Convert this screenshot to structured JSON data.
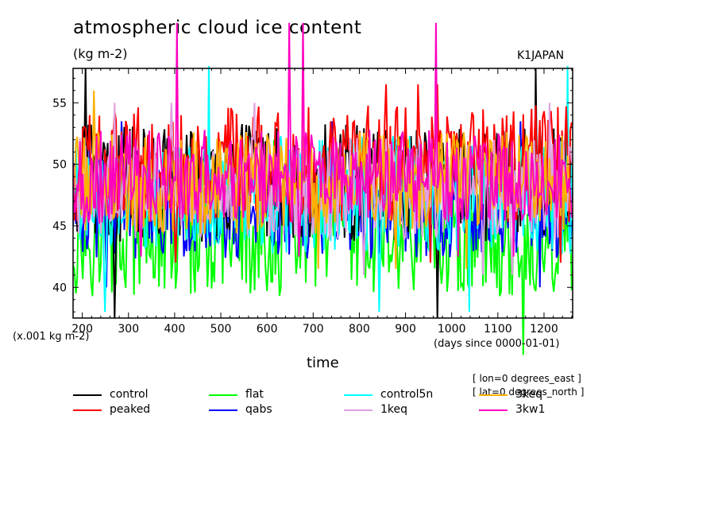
{
  "chart_data": {
    "type": "line",
    "title": "atmospheric cloud ice content",
    "subtitle": "(kg m-2)",
    "run_label": "K1JAPAN",
    "xlabel": "time",
    "x_unit_label": "(days since 0000-01-01)",
    "y_unit_label": "(x.001 kg m-2)",
    "ylabel": "",
    "xlim": [
      180,
      1262
    ],
    "ylim": [
      37.5,
      57.8
    ],
    "x_ticks": [
      200,
      300,
      400,
      500,
      600,
      700,
      800,
      900,
      1000,
      1100,
      1200
    ],
    "y_ticks": [
      40,
      45,
      50,
      55
    ],
    "grid": false,
    "legend_position": "bottom",
    "notes": [
      "[ lon=0 degrees_east ]",
      "[ lat=0 degrees_north ]"
    ],
    "series": [
      {
        "name": "control",
        "color": "#000000",
        "mean": 48.5,
        "amplitude": 3.0,
        "values_min": 37.5,
        "values_max": 57.8
      },
      {
        "name": "peaked",
        "color": "#ff0000",
        "mean": 50.0,
        "amplitude": 3.0,
        "values_min": 42.0,
        "values_max": 56.5
      },
      {
        "name": "flat",
        "color": "#00ff00",
        "mean": 44.0,
        "amplitude": 3.0,
        "values_min": 34.5,
        "values_max": 52.0
      },
      {
        "name": "qabs",
        "color": "#0000ff",
        "mean": 46.5,
        "amplitude": 2.6,
        "values_min": 40.0,
        "values_max": 53.5
      },
      {
        "name": "control5n",
        "color": "#00ffff",
        "mean": 47.5,
        "amplitude": 3.0,
        "values_min": 38.0,
        "values_max": 58.0
      },
      {
        "name": "1keq",
        "color": "#e0a0e0",
        "mean": 48.0,
        "amplitude": 2.6,
        "values_min": 41.0,
        "values_max": 55.0
      },
      {
        "name": "3keq",
        "color": "#ffb000",
        "mean": 48.5,
        "amplitude": 2.6,
        "values_min": 41.5,
        "values_max": 56.0
      },
      {
        "name": "3kw1",
        "color": "#ff00c0",
        "mean": 49.0,
        "amplitude": 2.4,
        "values_min": 42.5,
        "values_max": 61.5
      }
    ]
  }
}
